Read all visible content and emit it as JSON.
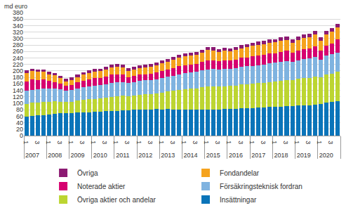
{
  "chart_data": {
    "type": "bar",
    "stacked": true,
    "grid": true,
    "legend": "bottom",
    "ylabel": "md euro",
    "ylim": [
      0,
      380
    ],
    "yticks": [
      0,
      20,
      40,
      60,
      80,
      100,
      120,
      140,
      160,
      180,
      200,
      220,
      240,
      260,
      280,
      300,
      320,
      340,
      360,
      380
    ],
    "categories": [
      [
        "2007",
        "1"
      ],
      [
        "2007",
        "2"
      ],
      [
        "2007",
        "3"
      ],
      [
        "2007",
        "4"
      ],
      [
        "2008",
        "1"
      ],
      [
        "2008",
        "2"
      ],
      [
        "2008",
        "3"
      ],
      [
        "2008",
        "4"
      ],
      [
        "2009",
        "1"
      ],
      [
        "2009",
        "2"
      ],
      [
        "2009",
        "3"
      ],
      [
        "2009",
        "4"
      ],
      [
        "2010",
        "1"
      ],
      [
        "2010",
        "2"
      ],
      [
        "2010",
        "3"
      ],
      [
        "2010",
        "4"
      ],
      [
        "2011",
        "1"
      ],
      [
        "2011",
        "2"
      ],
      [
        "2011",
        "3"
      ],
      [
        "2011",
        "4"
      ],
      [
        "2012",
        "1"
      ],
      [
        "2012",
        "2"
      ],
      [
        "2012",
        "3"
      ],
      [
        "2012",
        "4"
      ],
      [
        "2013",
        "1"
      ],
      [
        "2013",
        "2"
      ],
      [
        "2013",
        "3"
      ],
      [
        "2013",
        "4"
      ],
      [
        "2014",
        "1"
      ],
      [
        "2014",
        "2"
      ],
      [
        "2014",
        "3"
      ],
      [
        "2014",
        "4"
      ],
      [
        "2015",
        "1"
      ],
      [
        "2015",
        "2"
      ],
      [
        "2015",
        "3"
      ],
      [
        "2015",
        "4"
      ],
      [
        "2016",
        "1"
      ],
      [
        "2016",
        "2"
      ],
      [
        "2016",
        "3"
      ],
      [
        "2016",
        "4"
      ],
      [
        "2017",
        "1"
      ],
      [
        "2017",
        "2"
      ],
      [
        "2017",
        "3"
      ],
      [
        "2017",
        "4"
      ],
      [
        "2018",
        "1"
      ],
      [
        "2018",
        "2"
      ],
      [
        "2018",
        "3"
      ],
      [
        "2018",
        "4"
      ],
      [
        "2019",
        "1"
      ],
      [
        "2019",
        "2"
      ],
      [
        "2019",
        "3"
      ],
      [
        "2019",
        "4"
      ],
      [
        "2020",
        "1"
      ],
      [
        "2020",
        "2"
      ],
      [
        "2020",
        "3"
      ],
      [
        "2020",
        "4"
      ]
    ],
    "series": [
      {
        "name": "Insättningar",
        "color": "#0a74b9",
        "values": [
          58,
          60,
          62,
          64,
          66,
          68,
          69,
          70,
          70,
          71,
          71,
          72,
          73,
          74,
          75,
          76,
          77,
          78,
          78,
          80,
          80,
          81,
          81,
          82,
          81,
          82,
          81,
          81,
          81,
          80,
          80,
          81,
          81,
          81,
          81,
          82,
          83,
          83,
          84,
          84,
          85,
          86,
          86,
          88,
          89,
          90,
          91,
          92,
          93,
          94,
          94,
          96,
          98,
          103,
          104,
          107
        ]
      },
      {
        "name": "Övriga aktier och andelar",
        "color": "#bcd531",
        "values": [
          40,
          41,
          40,
          40,
          39,
          38,
          36,
          34,
          35,
          37,
          39,
          40,
          41,
          41,
          42,
          44,
          45,
          45,
          43,
          44,
          46,
          47,
          47,
          48,
          52,
          54,
          57,
          60,
          63,
          65,
          66,
          68,
          70,
          71,
          70,
          70,
          71,
          72,
          74,
          75,
          75,
          76,
          77,
          78,
          79,
          80,
          81,
          80,
          82,
          84,
          85,
          87,
          82,
          86,
          88,
          90
        ]
      },
      {
        "name": "Försäkringsteknisk fordran",
        "color": "#7fb3e0",
        "values": [
          40,
          41,
          41,
          41,
          40,
          39,
          38,
          36,
          37,
          38,
          39,
          40,
          41,
          41,
          42,
          43,
          43,
          43,
          42,
          42,
          43,
          43,
          44,
          44,
          45,
          46,
          47,
          48,
          49,
          50,
          51,
          52,
          54,
          54,
          54,
          54,
          53,
          54,
          55,
          55,
          56,
          56,
          57,
          57,
          57,
          58,
          58,
          56,
          58,
          59,
          59,
          60,
          55,
          58,
          59,
          60
        ]
      },
      {
        "name": "Noterade aktier",
        "color": "#d6006f",
        "values": [
          30,
          31,
          29,
          28,
          24,
          21,
          17,
          14,
          15,
          18,
          20,
          21,
          22,
          22,
          23,
          25,
          24,
          23,
          18,
          19,
          20,
          19,
          20,
          21,
          22,
          22,
          24,
          25,
          25,
          25,
          25,
          26,
          28,
          27,
          25,
          27,
          25,
          26,
          27,
          28,
          29,
          30,
          30,
          31,
          30,
          31,
          32,
          28,
          30,
          31,
          31,
          33,
          27,
          32,
          34,
          40
        ]
      },
      {
        "name": "Fondandelar",
        "color": "#f5a31e",
        "values": [
          25,
          26,
          25,
          24,
          21,
          20,
          17,
          14,
          15,
          17,
          19,
          20,
          21,
          21,
          22,
          23,
          23,
          22,
          19,
          19,
          20,
          20,
          21,
          22,
          23,
          24,
          25,
          26,
          27,
          28,
          28,
          29,
          31,
          30,
          28,
          29,
          28,
          29,
          30,
          31,
          32,
          32,
          33,
          33,
          33,
          34,
          34,
          31,
          33,
          34,
          35,
          36,
          31,
          34,
          36,
          38
        ]
      },
      {
        "name": "Övriga",
        "color": "#8c1a72",
        "values": [
          8,
          8,
          8,
          8,
          8,
          8,
          8,
          8,
          8,
          8,
          8,
          8,
          8,
          8,
          8,
          8,
          9,
          9,
          9,
          9,
          9,
          9,
          9,
          9,
          9,
          9,
          9,
          9,
          9,
          9,
          9,
          9,
          10,
          10,
          10,
          10,
          10,
          10,
          10,
          10,
          10,
          10,
          10,
          10,
          10,
          10,
          10,
          10,
          11,
          11,
          11,
          11,
          11,
          11,
          11,
          11
        ]
      }
    ]
  }
}
